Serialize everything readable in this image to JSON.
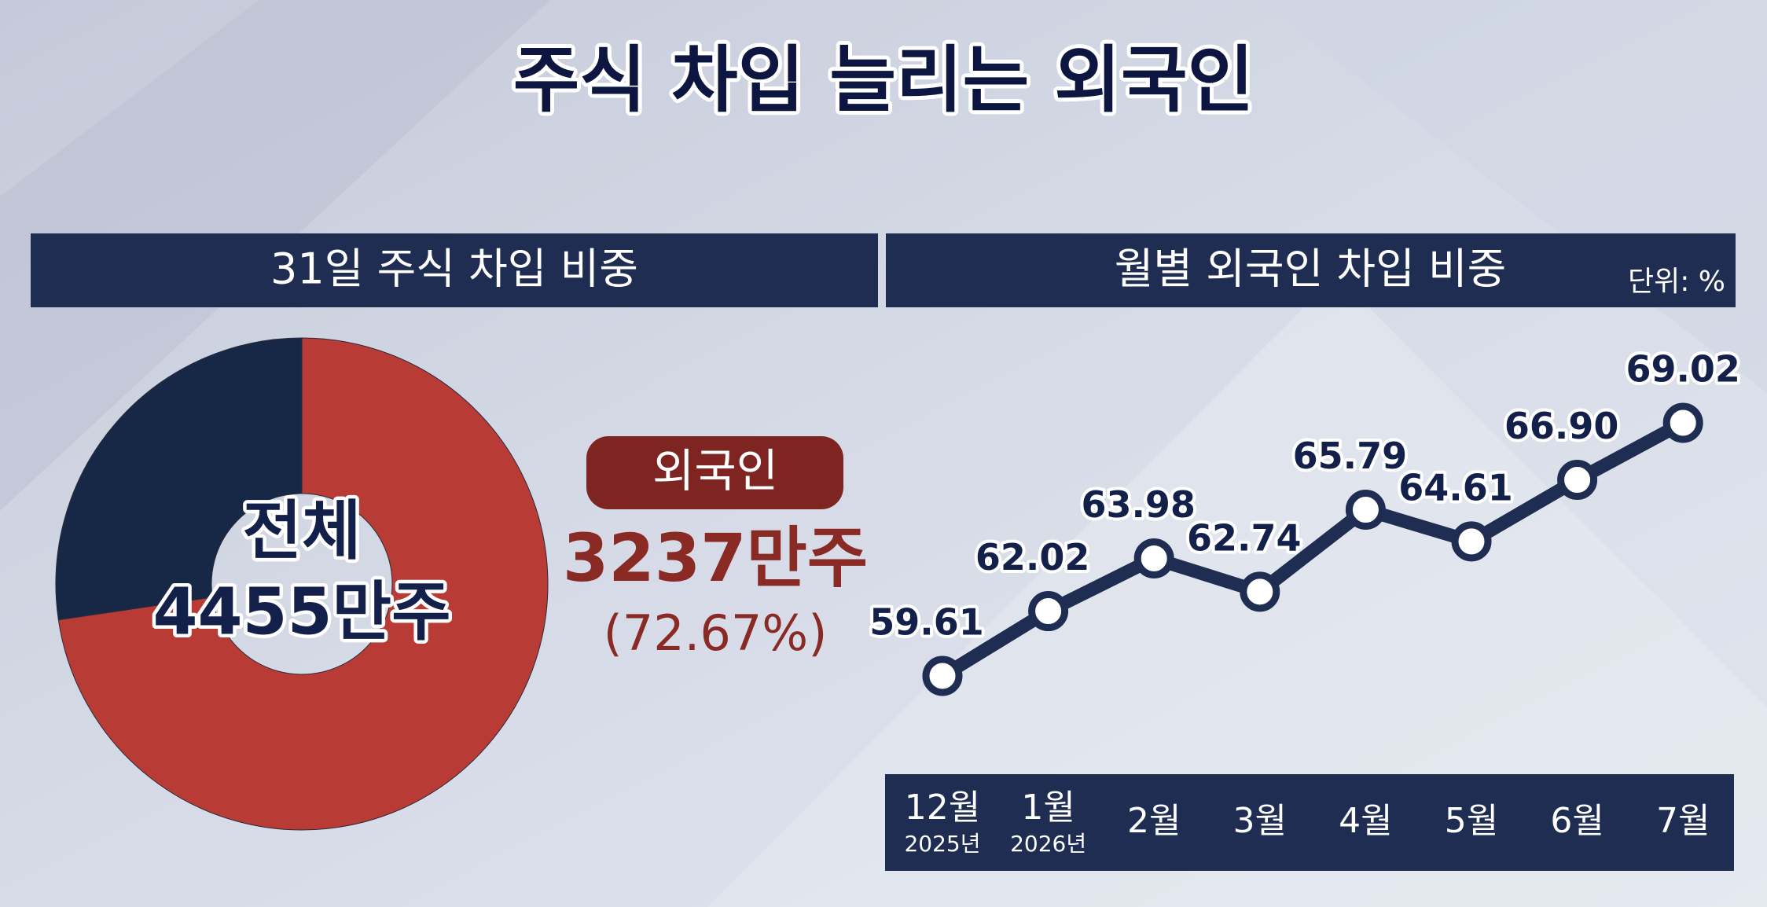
{
  "title": "주식 차입 늘리는 외국인",
  "chart_data": [
    {
      "type": "pie",
      "title": "31일 주식 차입 비중",
      "categories": [
        "외국인",
        null
      ],
      "values": [
        72.67,
        27.33
      ],
      "value_labels": [
        "(72.67%)",
        null
      ],
      "colors": [
        "#b83c35",
        "#172847"
      ],
      "center_title": "전체",
      "center_value": "4455만주",
      "amount": "3237만주"
    },
    {
      "type": "line",
      "title": "월별 외국인 차입 비중",
      "unit": "단위: %",
      "categories": [
        "12월",
        "1월",
        "2월",
        "3월",
        "4월",
        "5월",
        "6월",
        "7월"
      ],
      "category_sublabels": [
        "2025년",
        "2026년",
        null,
        null,
        null,
        null,
        null,
        null
      ],
      "values": [
        59.61,
        62.02,
        63.98,
        62.74,
        65.79,
        64.61,
        66.9,
        69.02
      ],
      "value_labels": [
        "59.61",
        "62.02",
        "63.98",
        "62.74",
        "65.79",
        "64.61",
        "66.90",
        "69.02"
      ],
      "color": "#1f2d52"
    }
  ]
}
